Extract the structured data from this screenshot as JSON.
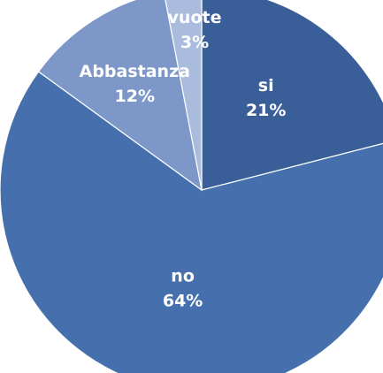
{
  "chart_data": {
    "type": "pie",
    "slices": [
      {
        "label": "si",
        "value": 21,
        "percent_text": "21%",
        "color": "#3a5f98"
      },
      {
        "label": "no",
        "value": 64,
        "percent_text": "64%",
        "color": "#4670ad"
      },
      {
        "label": "Abbastanza",
        "value": 12,
        "percent_text": "12%",
        "color": "#7d98c8"
      },
      {
        "label": "vuote",
        "value": 3,
        "percent_text": "3%",
        "color": "#a9bcdd"
      }
    ]
  }
}
